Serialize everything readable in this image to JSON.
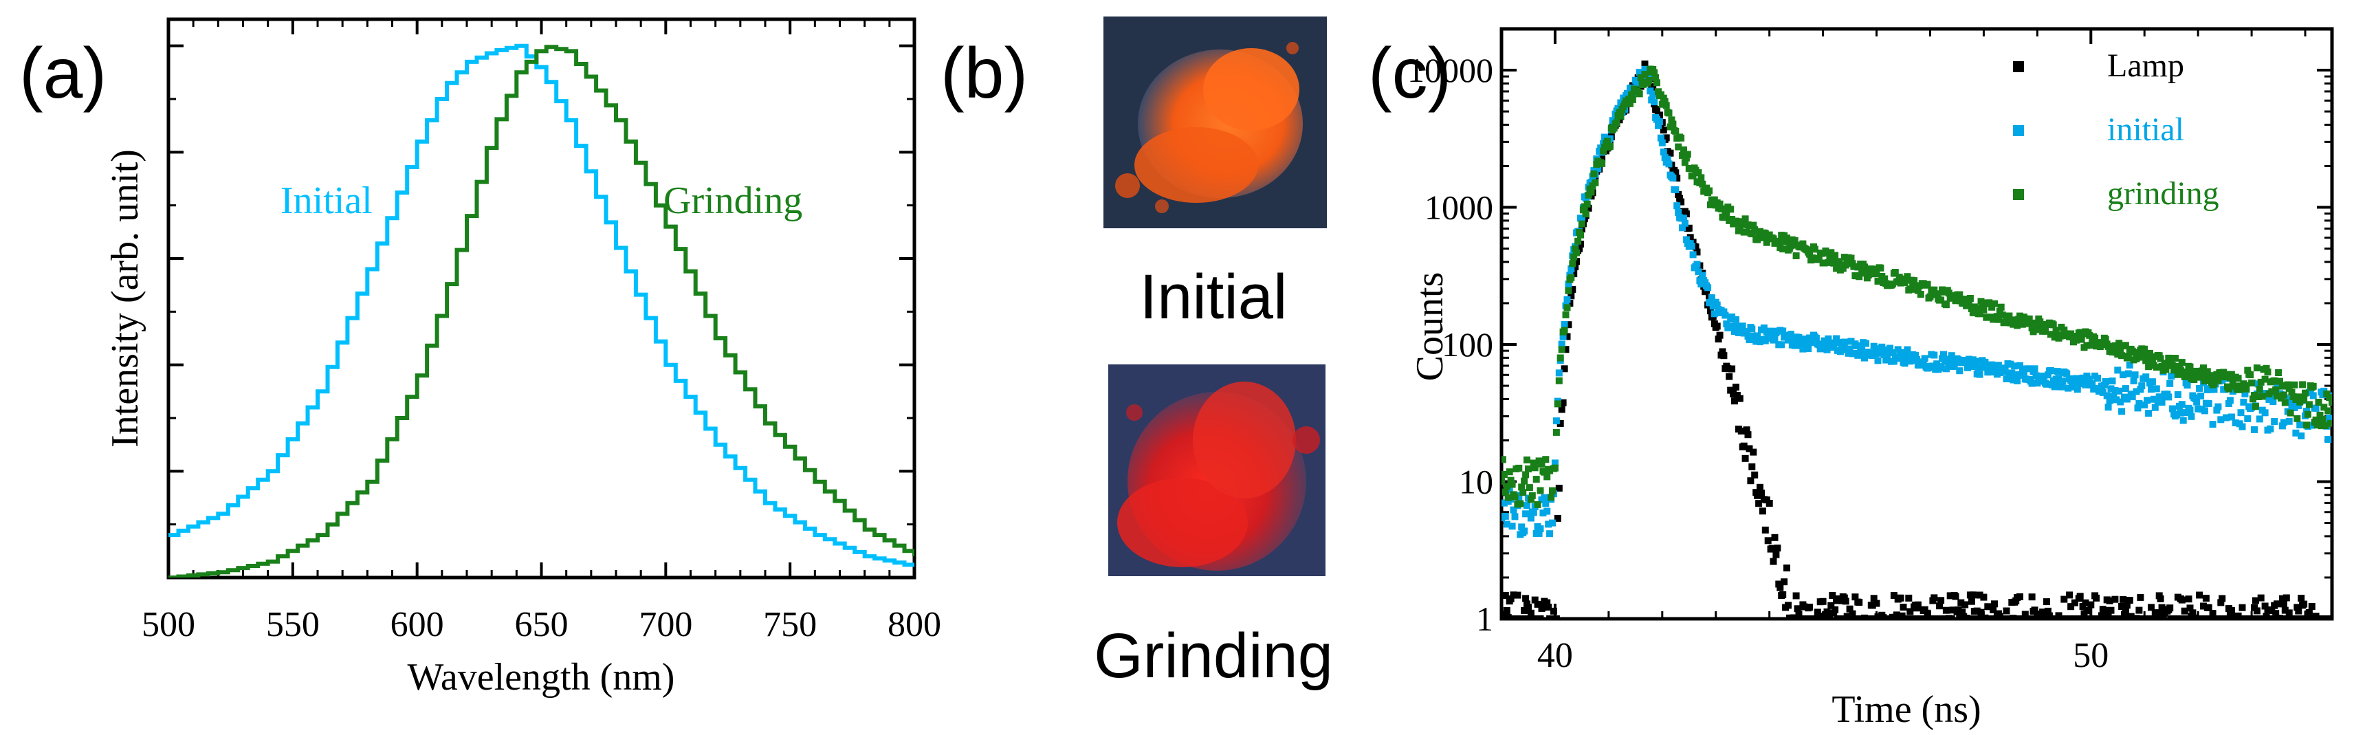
{
  "panels": {
    "a": {
      "label": "(a)"
    },
    "b": {
      "label": "(b)"
    },
    "c": {
      "label": "(c)"
    }
  },
  "photos": {
    "initial": {
      "caption": "Initial",
      "color": "#f45a14"
    },
    "grinding": {
      "caption": "Grinding",
      "color": "#e8221e"
    }
  },
  "chart_data": [
    {
      "id": "a",
      "type": "line",
      "title": "",
      "xlabel": "Wavelength (nm)",
      "ylabel": "Intensity (arb. unit)",
      "xlim": [
        500,
        800
      ],
      "ylim": [
        0,
        1.05
      ],
      "xticks": [
        500,
        550,
        600,
        650,
        700,
        750,
        800
      ],
      "yticks_labeled": false,
      "x": [
        500,
        520,
        540,
        560,
        580,
        600,
        610,
        620,
        630,
        640,
        650,
        660,
        670,
        680,
        700,
        720,
        740,
        760,
        780,
        800
      ],
      "series": [
        {
          "name": "Initial",
          "color": "#00bfff",
          "values": [
            0.08,
            0.12,
            0.2,
            0.35,
            0.58,
            0.82,
            0.92,
            0.97,
            0.99,
            1.0,
            0.95,
            0.86,
            0.74,
            0.62,
            0.4,
            0.25,
            0.14,
            0.08,
            0.04,
            0.02
          ]
        },
        {
          "name": "Grinding",
          "color": "#1a801a",
          "values": [
            0.0,
            0.01,
            0.03,
            0.08,
            0.18,
            0.38,
            0.52,
            0.68,
            0.84,
            0.95,
            1.0,
            0.99,
            0.93,
            0.86,
            0.66,
            0.45,
            0.29,
            0.18,
            0.09,
            0.04
          ]
        }
      ],
      "annotations": [
        {
          "text": "Initial",
          "color": "#00bfff"
        },
        {
          "text": "Grinding",
          "color": "#1a801a"
        }
      ]
    },
    {
      "id": "c",
      "type": "scatter",
      "title": "",
      "xlabel": "Time (ns)",
      "ylabel": "Counts",
      "yscale": "log",
      "xlim": [
        39,
        54.5
      ],
      "ylim": [
        1,
        20000
      ],
      "xticks": [
        40,
        50
      ],
      "yticks": [
        1,
        10,
        100,
        1000,
        10000
      ],
      "yticklabels": [
        "1",
        "10",
        "100",
        "1000",
        "10000"
      ],
      "legend_position": "top-right",
      "series": [
        {
          "name": "Lamp",
          "color": "#000000",
          "kind": "pulse",
          "rise_start": 40.0,
          "peak_time": 41.7,
          "peak": 10000,
          "decay_ns": 0.3,
          "floor": 1
        },
        {
          "name": "initial",
          "color": "#00a6e6",
          "kind": "decay",
          "rise_start": 39.9,
          "peak_time": 41.7,
          "peak": 10000,
          "fast_decay_ns": 0.25,
          "slow_amplitude": 150,
          "slow_decay_ns": 7,
          "floor": 6
        },
        {
          "name": "grinding",
          "color": "#198019",
          "kind": "decay",
          "rise_start": 39.9,
          "peak_time": 41.8,
          "peak": 10000,
          "fast_decay_ns": 0.35,
          "slow_amplitude": 1100,
          "slow_decay_ns": 3.35,
          "floor": 10
        }
      ]
    }
  ]
}
